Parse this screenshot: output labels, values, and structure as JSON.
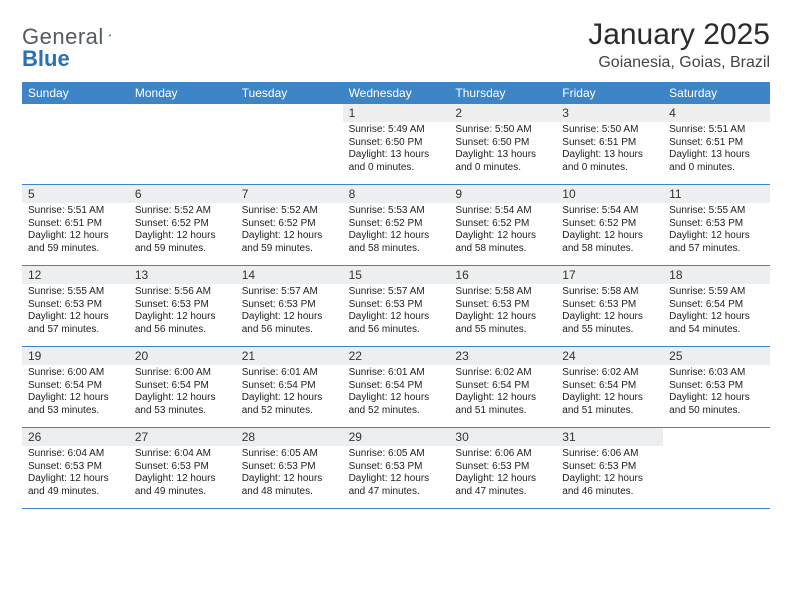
{
  "brand": {
    "part1": "General",
    "part2": "Blue"
  },
  "colors": {
    "brand_blue": "#2a72b5",
    "header_bg": "#3d85c6",
    "header_fg": "#ffffff",
    "band_bg": "#eceeef",
    "row_border": "#3d85c6",
    "text": "#222222",
    "title": "#2b2b2b"
  },
  "title": "January 2025",
  "location": "Goianesia, Goias, Brazil",
  "day_headers": [
    "Sunday",
    "Monday",
    "Tuesday",
    "Wednesday",
    "Thursday",
    "Friday",
    "Saturday"
  ],
  "weeks": [
    [
      {
        "num": "",
        "sunrise": "",
        "sunset": "",
        "daylight": ""
      },
      {
        "num": "",
        "sunrise": "",
        "sunset": "",
        "daylight": ""
      },
      {
        "num": "",
        "sunrise": "",
        "sunset": "",
        "daylight": ""
      },
      {
        "num": "1",
        "sunrise": "Sunrise: 5:49 AM",
        "sunset": "Sunset: 6:50 PM",
        "daylight": "Daylight: 13 hours and 0 minutes."
      },
      {
        "num": "2",
        "sunrise": "Sunrise: 5:50 AM",
        "sunset": "Sunset: 6:50 PM",
        "daylight": "Daylight: 13 hours and 0 minutes."
      },
      {
        "num": "3",
        "sunrise": "Sunrise: 5:50 AM",
        "sunset": "Sunset: 6:51 PM",
        "daylight": "Daylight: 13 hours and 0 minutes."
      },
      {
        "num": "4",
        "sunrise": "Sunrise: 5:51 AM",
        "sunset": "Sunset: 6:51 PM",
        "daylight": "Daylight: 13 hours and 0 minutes."
      }
    ],
    [
      {
        "num": "5",
        "sunrise": "Sunrise: 5:51 AM",
        "sunset": "Sunset: 6:51 PM",
        "daylight": "Daylight: 12 hours and 59 minutes."
      },
      {
        "num": "6",
        "sunrise": "Sunrise: 5:52 AM",
        "sunset": "Sunset: 6:52 PM",
        "daylight": "Daylight: 12 hours and 59 minutes."
      },
      {
        "num": "7",
        "sunrise": "Sunrise: 5:52 AM",
        "sunset": "Sunset: 6:52 PM",
        "daylight": "Daylight: 12 hours and 59 minutes."
      },
      {
        "num": "8",
        "sunrise": "Sunrise: 5:53 AM",
        "sunset": "Sunset: 6:52 PM",
        "daylight": "Daylight: 12 hours and 58 minutes."
      },
      {
        "num": "9",
        "sunrise": "Sunrise: 5:54 AM",
        "sunset": "Sunset: 6:52 PM",
        "daylight": "Daylight: 12 hours and 58 minutes."
      },
      {
        "num": "10",
        "sunrise": "Sunrise: 5:54 AM",
        "sunset": "Sunset: 6:52 PM",
        "daylight": "Daylight: 12 hours and 58 minutes."
      },
      {
        "num": "11",
        "sunrise": "Sunrise: 5:55 AM",
        "sunset": "Sunset: 6:53 PM",
        "daylight": "Daylight: 12 hours and 57 minutes."
      }
    ],
    [
      {
        "num": "12",
        "sunrise": "Sunrise: 5:55 AM",
        "sunset": "Sunset: 6:53 PM",
        "daylight": "Daylight: 12 hours and 57 minutes."
      },
      {
        "num": "13",
        "sunrise": "Sunrise: 5:56 AM",
        "sunset": "Sunset: 6:53 PM",
        "daylight": "Daylight: 12 hours and 56 minutes."
      },
      {
        "num": "14",
        "sunrise": "Sunrise: 5:57 AM",
        "sunset": "Sunset: 6:53 PM",
        "daylight": "Daylight: 12 hours and 56 minutes."
      },
      {
        "num": "15",
        "sunrise": "Sunrise: 5:57 AM",
        "sunset": "Sunset: 6:53 PM",
        "daylight": "Daylight: 12 hours and 56 minutes."
      },
      {
        "num": "16",
        "sunrise": "Sunrise: 5:58 AM",
        "sunset": "Sunset: 6:53 PM",
        "daylight": "Daylight: 12 hours and 55 minutes."
      },
      {
        "num": "17",
        "sunrise": "Sunrise: 5:58 AM",
        "sunset": "Sunset: 6:53 PM",
        "daylight": "Daylight: 12 hours and 55 minutes."
      },
      {
        "num": "18",
        "sunrise": "Sunrise: 5:59 AM",
        "sunset": "Sunset: 6:54 PM",
        "daylight": "Daylight: 12 hours and 54 minutes."
      }
    ],
    [
      {
        "num": "19",
        "sunrise": "Sunrise: 6:00 AM",
        "sunset": "Sunset: 6:54 PM",
        "daylight": "Daylight: 12 hours and 53 minutes."
      },
      {
        "num": "20",
        "sunrise": "Sunrise: 6:00 AM",
        "sunset": "Sunset: 6:54 PM",
        "daylight": "Daylight: 12 hours and 53 minutes."
      },
      {
        "num": "21",
        "sunrise": "Sunrise: 6:01 AM",
        "sunset": "Sunset: 6:54 PM",
        "daylight": "Daylight: 12 hours and 52 minutes."
      },
      {
        "num": "22",
        "sunrise": "Sunrise: 6:01 AM",
        "sunset": "Sunset: 6:54 PM",
        "daylight": "Daylight: 12 hours and 52 minutes."
      },
      {
        "num": "23",
        "sunrise": "Sunrise: 6:02 AM",
        "sunset": "Sunset: 6:54 PM",
        "daylight": "Daylight: 12 hours and 51 minutes."
      },
      {
        "num": "24",
        "sunrise": "Sunrise: 6:02 AM",
        "sunset": "Sunset: 6:54 PM",
        "daylight": "Daylight: 12 hours and 51 minutes."
      },
      {
        "num": "25",
        "sunrise": "Sunrise: 6:03 AM",
        "sunset": "Sunset: 6:53 PM",
        "daylight": "Daylight: 12 hours and 50 minutes."
      }
    ],
    [
      {
        "num": "26",
        "sunrise": "Sunrise: 6:04 AM",
        "sunset": "Sunset: 6:53 PM",
        "daylight": "Daylight: 12 hours and 49 minutes."
      },
      {
        "num": "27",
        "sunrise": "Sunrise: 6:04 AM",
        "sunset": "Sunset: 6:53 PM",
        "daylight": "Daylight: 12 hours and 49 minutes."
      },
      {
        "num": "28",
        "sunrise": "Sunrise: 6:05 AM",
        "sunset": "Sunset: 6:53 PM",
        "daylight": "Daylight: 12 hours and 48 minutes."
      },
      {
        "num": "29",
        "sunrise": "Sunrise: 6:05 AM",
        "sunset": "Sunset: 6:53 PM",
        "daylight": "Daylight: 12 hours and 47 minutes."
      },
      {
        "num": "30",
        "sunrise": "Sunrise: 6:06 AM",
        "sunset": "Sunset: 6:53 PM",
        "daylight": "Daylight: 12 hours and 47 minutes."
      },
      {
        "num": "31",
        "sunrise": "Sunrise: 6:06 AM",
        "sunset": "Sunset: 6:53 PM",
        "daylight": "Daylight: 12 hours and 46 minutes."
      },
      {
        "num": "",
        "sunrise": "",
        "sunset": "",
        "daylight": ""
      }
    ]
  ]
}
